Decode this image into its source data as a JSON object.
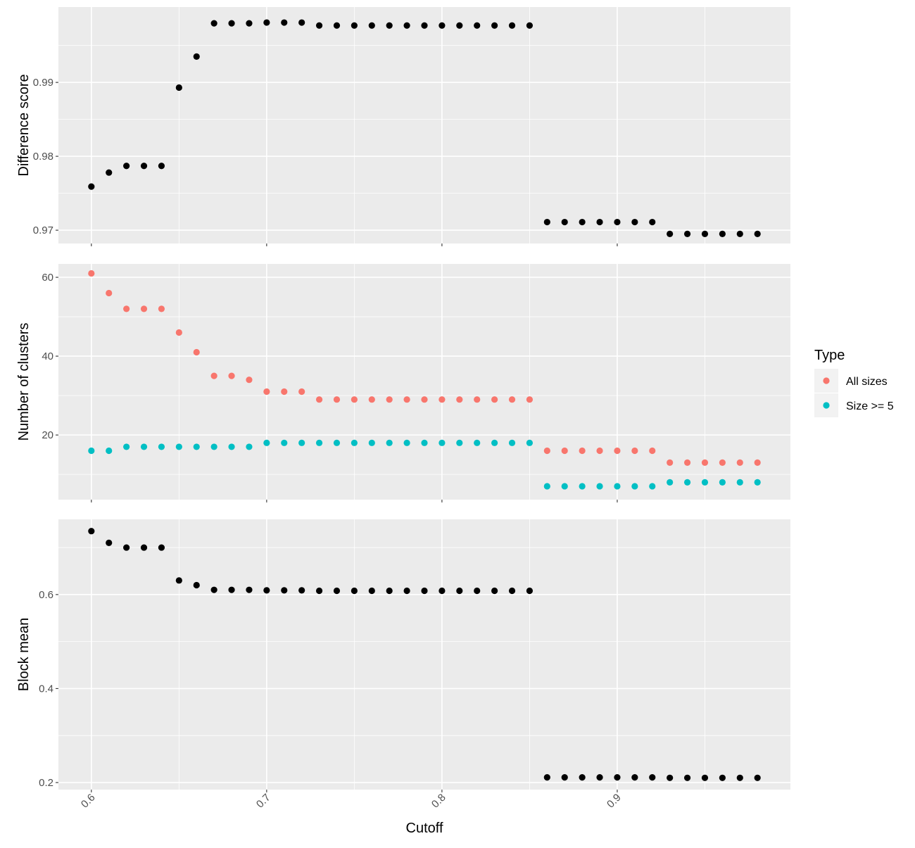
{
  "chart_data": {
    "type": "scatter",
    "xlabel": "Cutoff",
    "x_ticks": [
      "0.6",
      "0.7",
      "0.8",
      "0.9"
    ],
    "xlim": [
      0.5812,
      0.9988
    ],
    "x": [
      0.6,
      0.61,
      0.62,
      0.63,
      0.64,
      0.65,
      0.66,
      0.67,
      0.68,
      0.69,
      0.7,
      0.71,
      0.72,
      0.73,
      0.74,
      0.75,
      0.76,
      0.77,
      0.78,
      0.79,
      0.8,
      0.81,
      0.82,
      0.83,
      0.84,
      0.85,
      0.86,
      0.87,
      0.88,
      0.89,
      0.9,
      0.91,
      0.92,
      0.93,
      0.94,
      0.95,
      0.96,
      0.97,
      0.98
    ],
    "grid": true,
    "panels": [
      {
        "ylabel": "Difference score",
        "ylim": [
          0.9682,
          1.0002
        ],
        "y_ticks": [
          0.97,
          0.98,
          0.99
        ],
        "y_tick_labels": [
          "0.97",
          "0.98",
          "0.99"
        ],
        "series": [
          {
            "color": "#000000",
            "values": [
              0.9759,
              0.9778,
              0.9787,
              0.9787,
              0.9787,
              0.9893,
              0.9935,
              0.998,
              0.998,
              0.998,
              0.9981,
              0.9981,
              0.9981,
              0.9977,
              0.9977,
              0.9977,
              0.9977,
              0.9977,
              0.9977,
              0.9977,
              0.9977,
              0.9977,
              0.9977,
              0.9977,
              0.9977,
              0.9977,
              0.9711,
              0.9711,
              0.9711,
              0.9711,
              0.9711,
              0.9711,
              0.9711,
              0.9695,
              0.9695,
              0.9695,
              0.9695,
              0.9695,
              0.9695
            ]
          }
        ]
      },
      {
        "ylabel": "Number of clusters",
        "ylim": [
          3.6,
          63.4
        ],
        "y_ticks": [
          20,
          40,
          60
        ],
        "y_tick_labels": [
          "20",
          "40",
          "60"
        ],
        "series": [
          {
            "name": "All sizes",
            "color": "#F8766D",
            "values": [
              61,
              56,
              52,
              52,
              52,
              46,
              41,
              35,
              35,
              34,
              31,
              31,
              31,
              29,
              29,
              29,
              29,
              29,
              29,
              29,
              29,
              29,
              29,
              29,
              29,
              29,
              16,
              16,
              16,
              16,
              16,
              16,
              16,
              13,
              13,
              13,
              13,
              13,
              13
            ]
          },
          {
            "name": "Size >= 5",
            "color": "#00BFC4",
            "values": [
              16,
              16,
              17,
              17,
              17,
              17,
              17,
              17,
              17,
              17,
              18,
              18,
              18,
              18,
              18,
              18,
              18,
              18,
              18,
              18,
              18,
              18,
              18,
              18,
              18,
              18,
              7,
              7,
              7,
              7,
              7,
              7,
              7,
              8,
              8,
              8,
              8,
              8,
              8
            ]
          }
        ]
      },
      {
        "ylabel": "Block mean",
        "ylim": [
          0.185,
          0.76
        ],
        "y_ticks": [
          0.2,
          0.4,
          0.6
        ],
        "y_tick_labels": [
          "0.2",
          "0.4",
          "0.6"
        ],
        "series": [
          {
            "color": "#000000",
            "values": [
              0.735,
              0.71,
              0.7,
              0.7,
              0.7,
              0.63,
              0.62,
              0.61,
              0.61,
              0.61,
              0.609,
              0.609,
              0.609,
              0.608,
              0.608,
              0.608,
              0.608,
              0.608,
              0.608,
              0.608,
              0.608,
              0.608,
              0.608,
              0.608,
              0.608,
              0.608,
              0.211,
              0.211,
              0.211,
              0.211,
              0.211,
              0.211,
              0.211,
              0.21,
              0.21,
              0.21,
              0.21,
              0.21,
              0.21
            ]
          }
        ]
      }
    ],
    "legend": {
      "title": "Type",
      "position": "right",
      "entries": [
        {
          "label": "All sizes",
          "color": "#F8766D"
        },
        {
          "label": "Size >= 5",
          "color": "#00BFC4"
        }
      ]
    }
  }
}
